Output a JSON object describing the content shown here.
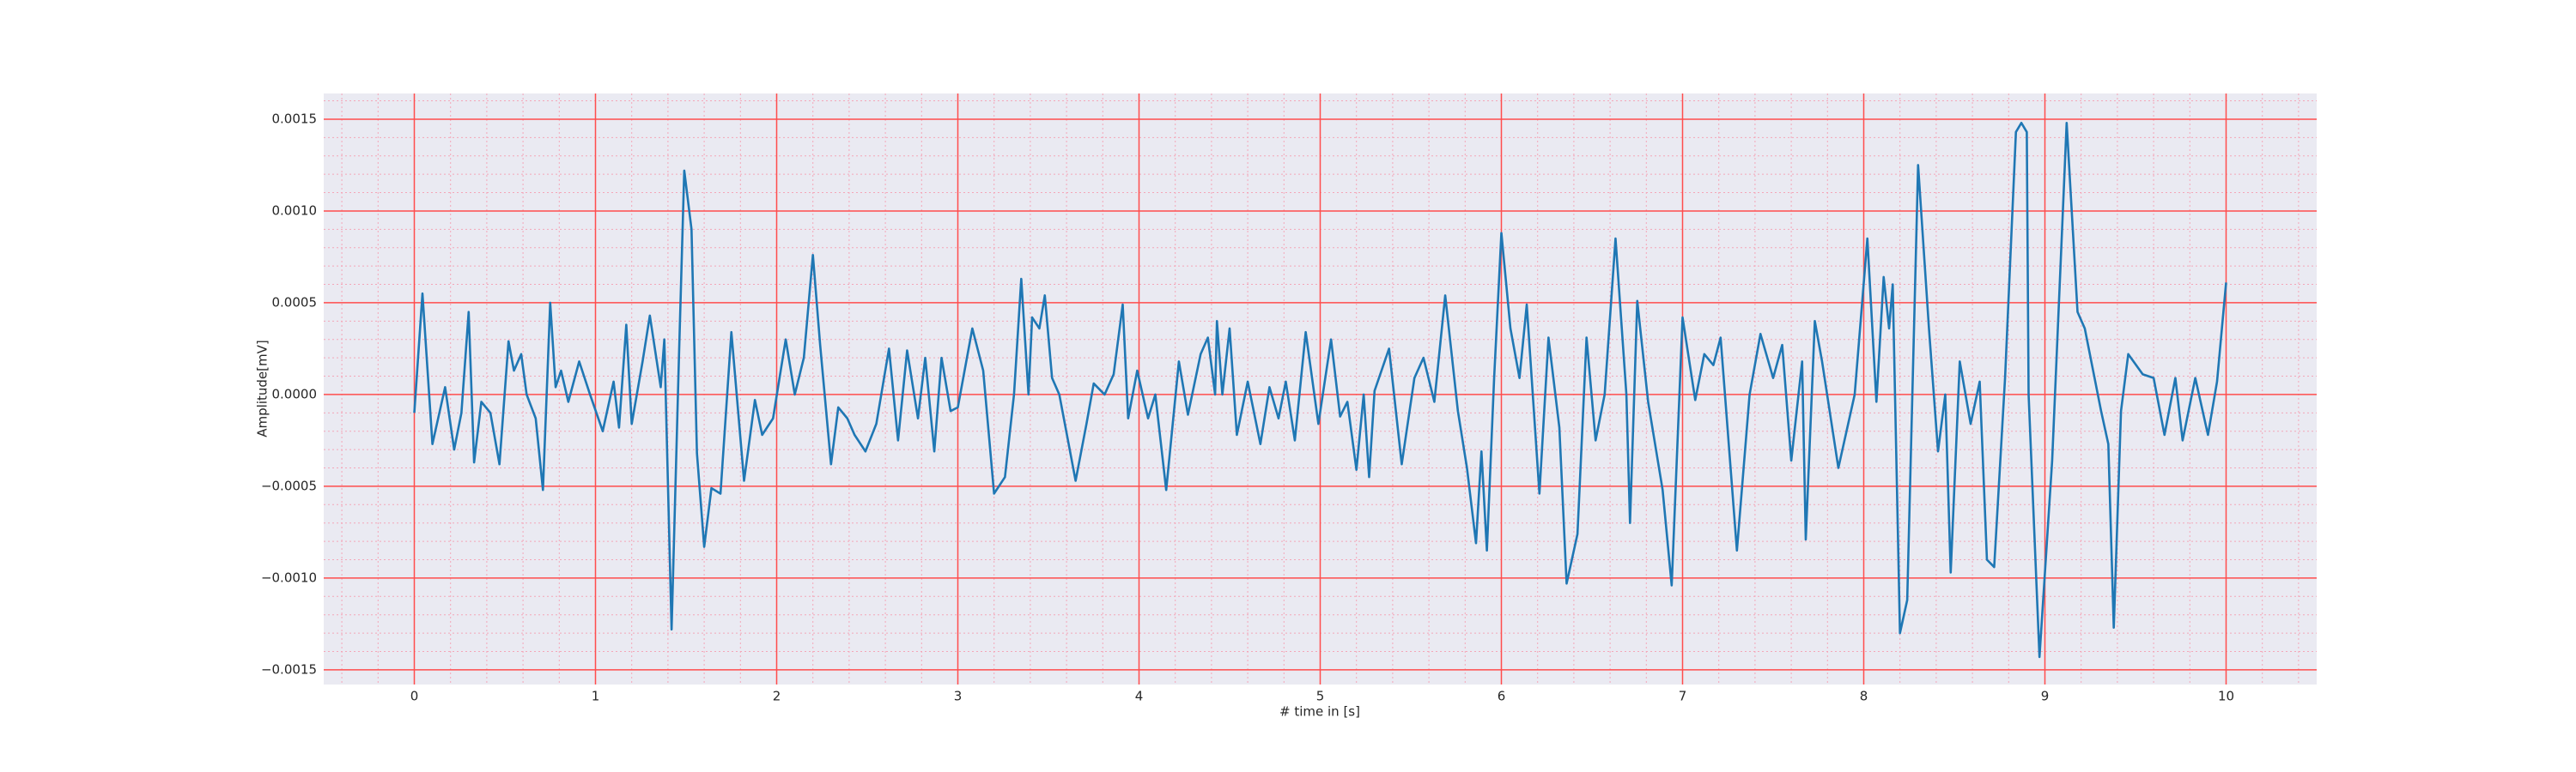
{
  "chart_data": {
    "type": "line",
    "xlabel": "# time in [s]",
    "ylabel": "Amplitude[mV]",
    "xlim": [
      -0.5,
      10.5
    ],
    "ylim": [
      -0.00158,
      0.00164
    ],
    "xticks": [
      0,
      1,
      2,
      3,
      4,
      5,
      6,
      7,
      8,
      9,
      10
    ],
    "yticks": [
      {
        "value": -0.0015,
        "label": "−0.0015"
      },
      {
        "value": -0.001,
        "label": "−0.0010"
      },
      {
        "value": -0.0005,
        "label": "−0.0005"
      },
      {
        "value": 0,
        "label": "0.0000"
      },
      {
        "value": 0.0005,
        "label": "0.0005"
      },
      {
        "value": 0.001,
        "label": "0.0010"
      },
      {
        "value": 0.0015,
        "label": "0.0015"
      }
    ],
    "grid": true,
    "minor_grid": true,
    "minor_divisions": 5,
    "background": "#eaeaf2",
    "grid_color": "#ff4d4d",
    "minor_grid_color": "#f4a6b8",
    "series": [
      {
        "color": "#1f77b4",
        "x": [
          0,
          0.045,
          0.1,
          0.17,
          0.22,
          0.26,
          0.3,
          0.33,
          0.37,
          0.42,
          0.47,
          0.52,
          0.55,
          0.59,
          0.62,
          0.67,
          0.71,
          0.75,
          0.78,
          0.81,
          0.85,
          0.91,
          0.97,
          1.04,
          1.1,
          1.13,
          1.17,
          1.2,
          1.26,
          1.3,
          1.36,
          1.38,
          1.42,
          1.46,
          1.49,
          1.53,
          1.56,
          1.6,
          1.64,
          1.69,
          1.75,
          1.82,
          1.88,
          1.92,
          1.98,
          2.05,
          2.1,
          2.15,
          2.2,
          2.24,
          2.3,
          2.34,
          2.39,
          2.43,
          2.49,
          2.55,
          2.62,
          2.67,
          2.72,
          2.78,
          2.82,
          2.87,
          2.91,
          2.96,
          3.0,
          3.08,
          3.14,
          3.2,
          3.26,
          3.31,
          3.35,
          3.39,
          3.41,
          3.45,
          3.48,
          3.52,
          3.56,
          3.65,
          3.71,
          3.75,
          3.81,
          3.86,
          3.91,
          3.94,
          3.99,
          4.05,
          4.09,
          4.15,
          4.22,
          4.27,
          4.34,
          4.38,
          4.42,
          4.43,
          4.46,
          4.5,
          4.54,
          4.6,
          4.67,
          4.72,
          4.77,
          4.81,
          4.86,
          4.92,
          4.99,
          5.06,
          5.11,
          5.15,
          5.2,
          5.24,
          5.27,
          5.3,
          5.38,
          5.45,
          5.52,
          5.57,
          5.63,
          5.69,
          5.76,
          5.81,
          5.86,
          5.89,
          5.92,
          5.96,
          6.0,
          6.05,
          6.1,
          6.14,
          6.21,
          6.26,
          6.32,
          6.36,
          6.42,
          6.47,
          6.52,
          6.57,
          6.63,
          6.69,
          6.71,
          6.75,
          6.81,
          6.89,
          6.94,
          7.0,
          7.07,
          7.12,
          7.17,
          7.21,
          7.3,
          7.37,
          7.43,
          7.5,
          7.55,
          7.6,
          7.66,
          7.68,
          7.73,
          7.77,
          7.86,
          7.95,
          8.02,
          8.07,
          8.11,
          8.14,
          8.16,
          8.2,
          8.24,
          8.3,
          8.36,
          8.41,
          8.45,
          8.48,
          8.53,
          8.59,
          8.64,
          8.68,
          8.72,
          8.78,
          8.84,
          8.87,
          8.9,
          8.91,
          8.97,
          9.04,
          9.12,
          9.18,
          9.22,
          9.31,
          9.35,
          9.38,
          9.42,
          9.46,
          9.54,
          9.6,
          9.66,
          9.72,
          9.76,
          9.83,
          9.9,
          9.95,
          10.0
        ],
        "values": [
          -0.0001,
          0.00055,
          -0.00027,
          4e-05,
          -0.0003,
          -0.0001,
          0.00045,
          -0.00037,
          -4e-05,
          -0.0001,
          -0.00038,
          0.00029,
          0.00013,
          0.00022,
          0.0,
          -0.00013,
          -0.00052,
          0.0005,
          4e-05,
          0.00013,
          -4e-05,
          0.00018,
          0.0,
          -0.0002,
          7e-05,
          -0.00018,
          0.00038,
          -0.00016,
          0.00018,
          0.00043,
          4e-05,
          0.0003,
          -0.00128,
          0.00018,
          0.00122,
          0.0009,
          -0.00032,
          -0.00083,
          -0.00051,
          -0.00054,
          0.00034,
          -0.00047,
          -3e-05,
          -0.00022,
          -0.00013,
          0.0003,
          0.0,
          0.0002,
          0.00076,
          0.00027,
          -0.00038,
          -7e-05,
          -0.00013,
          -0.00022,
          -0.00031,
          -0.00016,
          0.00025,
          -0.00025,
          0.00024,
          -0.00013,
          0.0002,
          -0.00031,
          0.0002,
          -9e-05,
          -7e-05,
          0.00036,
          0.00013,
          -0.00054,
          -0.00045,
          0.0,
          0.00063,
          0.0,
          0.00042,
          0.00036,
          0.00054,
          9e-05,
          0.0,
          -0.00047,
          -0.00016,
          6e-05,
          0.0,
          0.00011,
          0.00049,
          -0.00013,
          0.00013,
          -0.00013,
          0.0,
          -0.00052,
          0.00018,
          -0.00011,
          0.00022,
          0.00031,
          0.0,
          0.0004,
          0.0,
          0.00036,
          -0.00022,
          7e-05,
          -0.00027,
          4e-05,
          -0.00013,
          7e-05,
          -0.00025,
          0.00034,
          -0.00016,
          0.0003,
          -0.00012,
          -4e-05,
          -0.00041,
          0.0,
          -0.00045,
          2e-05,
          0.00025,
          -0.00038,
          9e-05,
          0.0002,
          -4e-05,
          0.00054,
          -9e-05,
          -0.0004,
          -0.00081,
          -0.00031,
          -0.00085,
          9e-05,
          0.00088,
          0.00036,
          9e-05,
          0.00049,
          -0.00054,
          0.00031,
          -0.00018,
          -0.00103,
          -0.00076,
          0.00031,
          -0.00025,
          0.0,
          0.00085,
          0.0,
          -0.0007,
          0.00051,
          -4e-05,
          -0.00052,
          -0.00104,
          0.00042,
          -3e-05,
          0.00022,
          0.00016,
          0.00031,
          -0.00085,
          0.0,
          0.00033,
          9e-05,
          0.00027,
          -0.00036,
          0.00018,
          -0.00079,
          0.0004,
          0.00018,
          -0.0004,
          0.0,
          0.00085,
          -4e-05,
          0.00064,
          0.00036,
          0.0006,
          -0.0013,
          -0.00112,
          0.00125,
          0.00036,
          -0.00031,
          0.0,
          -0.00097,
          0.00018,
          -0.00016,
          7e-05,
          -0.0009,
          -0.00094,
          9e-05,
          0.00143,
          0.00148,
          0.00143,
          0.0,
          -0.00143,
          -0.00036,
          0.00148,
          0.00045,
          0.00036,
          -9e-05,
          -0.00027,
          -0.00127,
          -9e-05,
          0.00022,
          0.00011,
          9e-05,
          -0.00022,
          9e-05,
          -0.00025,
          9e-05,
          -0.00022,
          7e-05,
          0.00061
        ]
      }
    ]
  }
}
